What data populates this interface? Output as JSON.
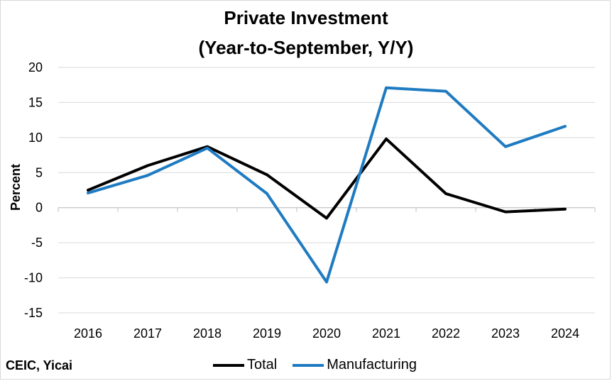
{
  "chart_data": {
    "type": "line",
    "title_line1": "Private Investment",
    "title_line2": "(Year-to-September, Y/Y)",
    "ylabel": "Percent",
    "xlabel": "",
    "ylim": [
      -15,
      20
    ],
    "yticks": [
      20,
      15,
      10,
      5,
      0,
      -5,
      -10,
      -15
    ],
    "ytick_labels": [
      "20",
      "15",
      "10",
      "5",
      "0",
      "-5",
      "-10",
      "-15"
    ],
    "categories": [
      "2016",
      "2017",
      "2018",
      "2019",
      "2020",
      "2021",
      "2022",
      "2023",
      "2024"
    ],
    "grid": true,
    "legend_position": "bottom",
    "series": [
      {
        "name": "Total",
        "color": "#000000",
        "values": [
          2.5,
          6.0,
          8.7,
          4.7,
          -1.5,
          9.8,
          2.0,
          -0.6,
          -0.2
        ]
      },
      {
        "name": "Manufacturing",
        "color": "#1f7bc1",
        "values": [
          2.1,
          4.6,
          8.5,
          2.0,
          -10.6,
          17.1,
          16.6,
          8.7,
          11.6
        ]
      }
    ],
    "source": "CEIC, Yicai"
  }
}
